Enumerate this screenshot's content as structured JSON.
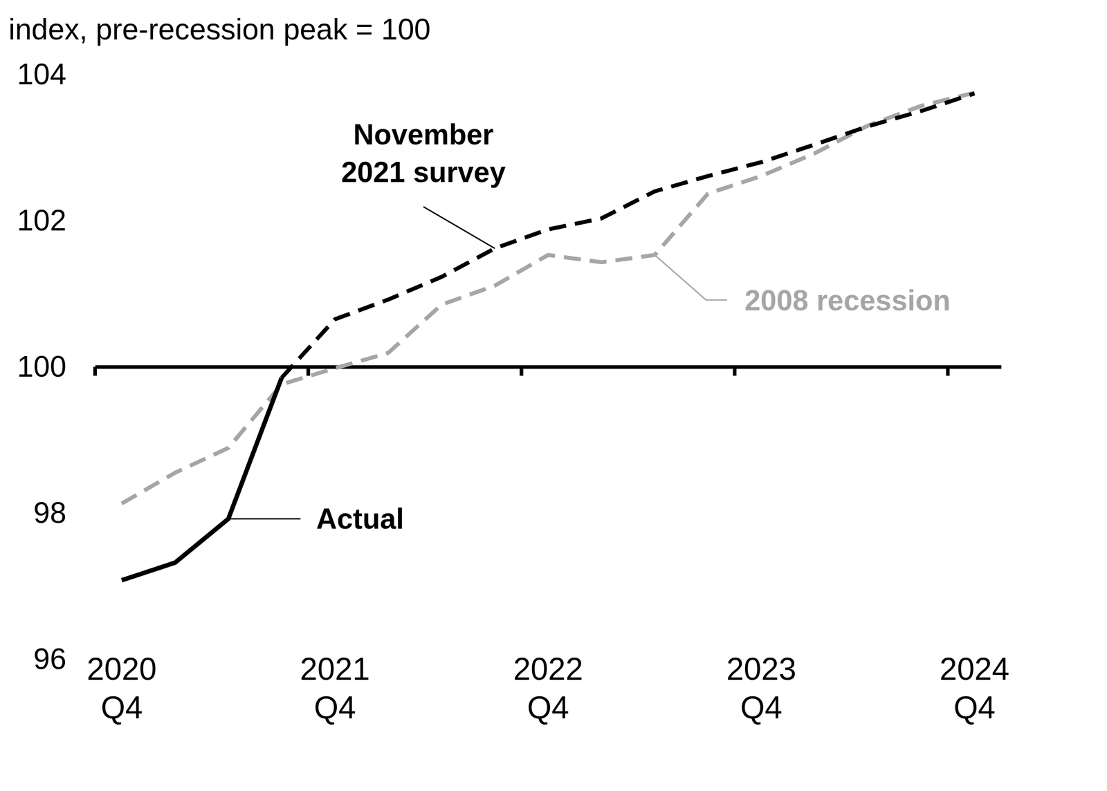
{
  "chart_data": {
    "type": "line",
    "y_label": "index, pre-recession peak = 100",
    "categories": [
      "2020 Q4",
      null,
      null,
      null,
      "2021 Q4",
      null,
      null,
      null,
      "2022 Q4",
      null,
      null,
      null,
      "2023 Q4",
      null,
      null,
      null,
      "2024 Q4"
    ],
    "ylim": [
      96,
      104
    ],
    "yticks": [
      96,
      98,
      100,
      102,
      104
    ],
    "grid": false,
    "series": [
      {
        "name": "Actual",
        "color": "#000000",
        "line_style": "solid",
        "values": [
          97.08,
          97.32,
          97.92,
          99.85,
          null,
          null,
          null,
          null,
          null,
          null,
          null,
          null,
          null,
          null,
          null,
          null,
          null
        ]
      },
      {
        "name": "November 2021 survey",
        "color": "#000000",
        "line_style": "dashed",
        "values": [
          null,
          null,
          null,
          99.85,
          100.65,
          100.92,
          101.23,
          101.62,
          101.88,
          102.03,
          102.4,
          102.61,
          102.8,
          103.04,
          103.29,
          103.5,
          103.74
        ]
      },
      {
        "name": "2008 recession",
        "color": "#a6a6a6",
        "line_style": "dashed",
        "values": [
          98.13,
          98.55,
          98.89,
          99.76,
          99.98,
          100.19,
          100.85,
          101.11,
          101.53,
          101.43,
          101.53,
          102.37,
          102.61,
          102.92,
          103.3,
          103.57,
          103.75
        ]
      }
    ]
  }
}
